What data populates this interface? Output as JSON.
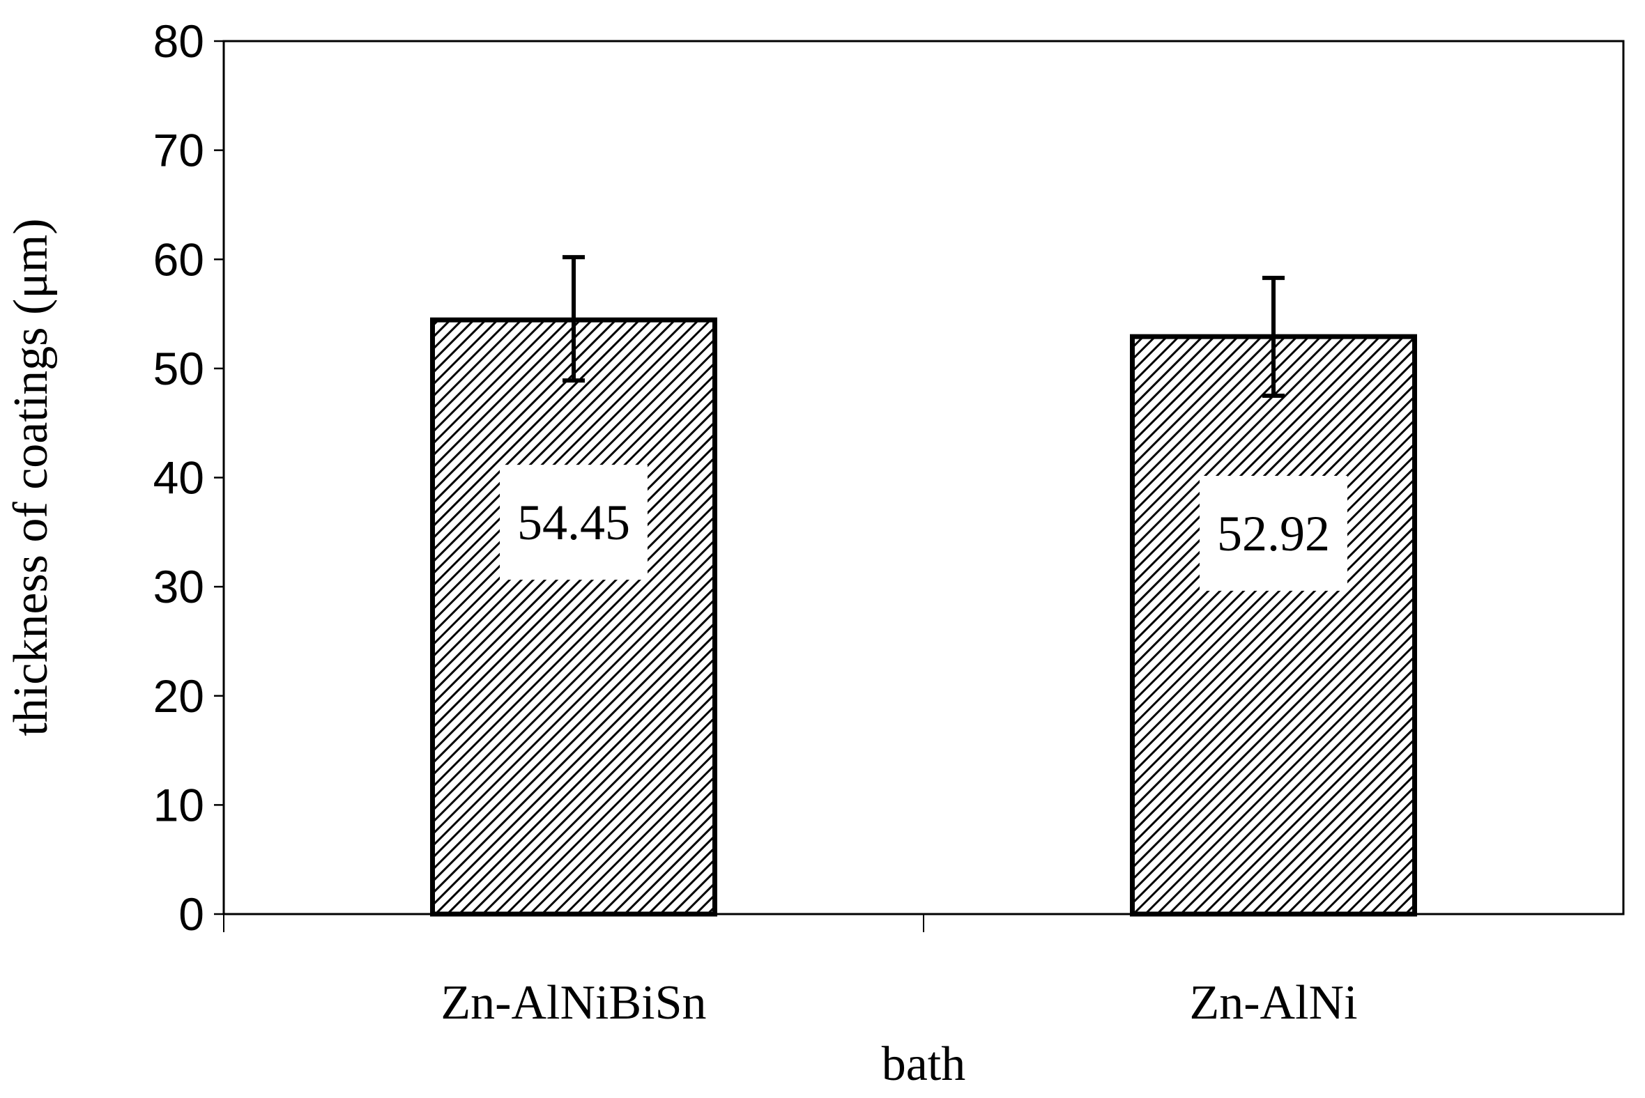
{
  "chart_data": {
    "type": "bar",
    "categories": [
      "Zn-AlNiBiSn",
      "Zn-AlNi"
    ],
    "values": [
      54.45,
      52.92
    ],
    "value_labels": [
      "54.45",
      "52.92"
    ],
    "error_bars": [
      {
        "low": 48.9,
        "high": 60.2
      },
      {
        "low": 47.5,
        "high": 58.3
      }
    ],
    "xlabel": "bath",
    "ylabel": "thickness of coatings (μm)",
    "ylim": [
      0,
      80
    ],
    "yticks": [
      "0",
      "10",
      "20",
      "30",
      "40",
      "50",
      "60",
      "70",
      "80"
    ],
    "grid": false,
    "legend": "none",
    "bar_fill": "diagonal-hatch",
    "colors": {
      "bar_stroke": "#000000",
      "hatch": "#000000",
      "background": "#ffffff"
    }
  }
}
